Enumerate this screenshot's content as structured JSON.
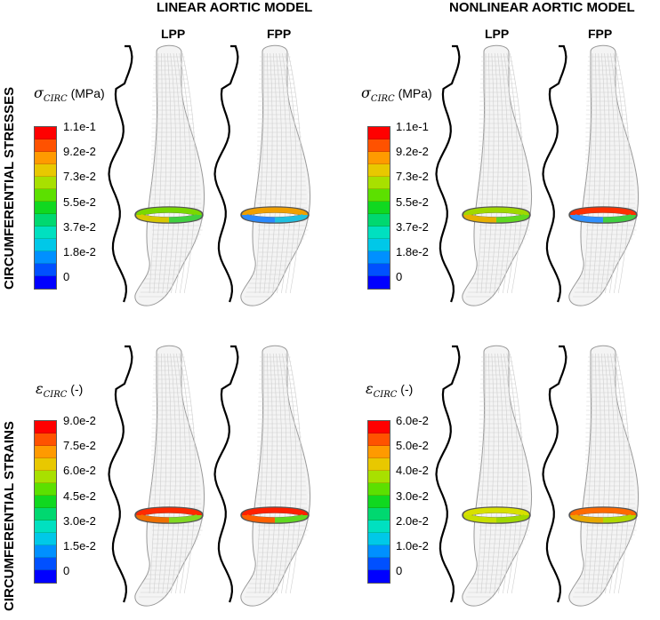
{
  "headers": {
    "linear": "LINEAR AORTIC MODEL",
    "nonlinear": "NONLINEAR AORTIC MODEL"
  },
  "subheaders": {
    "lpp": "LPP",
    "fpp": "FPP"
  },
  "rows": {
    "stresses": "CIRCUMFERENTIAL STRESSES",
    "strains": "CIRCUMFERENTIAL STRAINS"
  },
  "legends": {
    "stress": {
      "symbol": "σ",
      "subscript": "CIRC",
      "unit": "(MPa)",
      "ticks": [
        "1.1e-1",
        "9.2e-2",
        "7.3e-2",
        "5.5e-2",
        "3.7e-2",
        "1.8e-2",
        "0"
      ]
    },
    "strain_linear": {
      "symbol": "ε",
      "subscript": "CIRC",
      "unit": "(-)",
      "ticks": [
        "9.0e-2",
        "7.5e-2",
        "6.0e-2",
        "4.5e-2",
        "3.0e-2",
        "1.5e-2",
        "0"
      ]
    },
    "strain_nonlinear": {
      "symbol": "ε",
      "subscript": "CIRC",
      "unit": "(-)",
      "ticks": [
        "6.0e-2",
        "5.0e-2",
        "4.0e-2",
        "3.0e-2",
        "2.0e-2",
        "1.0e-2",
        "0"
      ]
    }
  },
  "colormap": [
    "#ff0000",
    "#ff5200",
    "#ff9a00",
    "#e8c800",
    "#a8e000",
    "#5ce000",
    "#10d820",
    "#00d870",
    "#00e0c0",
    "#00c8e8",
    "#0090ff",
    "#0050ff",
    "#0000ff"
  ],
  "ring_colors": {
    "stress_linear_lpp": [
      "#7ad800",
      "#d8c800",
      "#40d040"
    ],
    "stress_linear_fpp": [
      "#f0a000",
      "#2a8aff",
      "#20c0e0"
    ],
    "stress_nonlinear_lpp": [
      "#a0d800",
      "#e8b000",
      "#60d820"
    ],
    "stress_nonlinear_fpp": [
      "#ff3000",
      "#3090ff",
      "#40d040"
    ],
    "strain_linear_lpp": [
      "#ff2a00",
      "#f07000",
      "#80d820"
    ],
    "strain_linear_fpp": [
      "#ff2000",
      "#ff6000",
      "#60d820"
    ],
    "strain_nonlinear_lpp": [
      "#d8e000",
      "#c8e000",
      "#a0d800"
    ],
    "strain_nonlinear_fpp": [
      "#ff6a00",
      "#e8a800",
      "#b0d800"
    ]
  }
}
